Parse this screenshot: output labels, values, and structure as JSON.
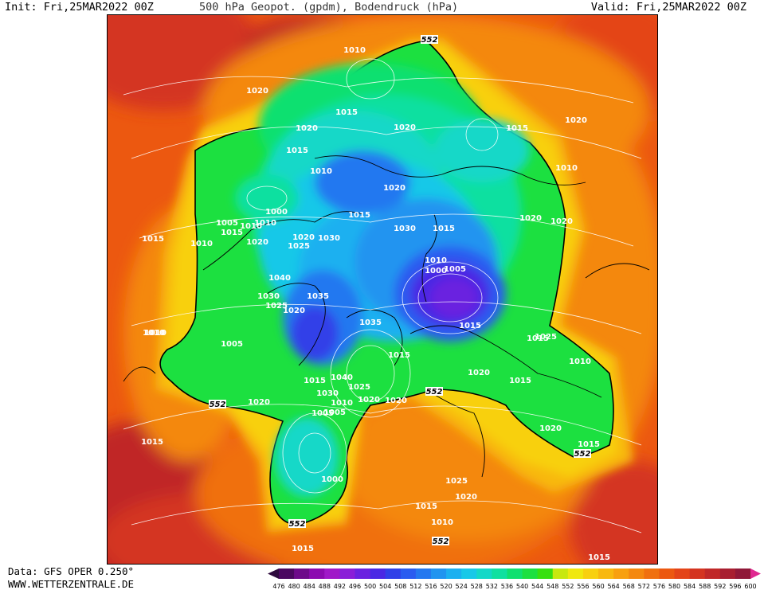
{
  "header": {
    "init": "Init: Fri,25MAR2022 00Z",
    "title": "500 hPa Geopot. (gpdm), Bodendruck (hPa)",
    "valid": "Valid: Fri,25MAR2022 00Z"
  },
  "footer": {
    "data_source": "Data: GFS OPER 0.250°",
    "website": "WWW.WETTERZENTRALE.DE"
  },
  "legend": {
    "ticks": [
      "476",
      "480",
      "484",
      "488",
      "492",
      "496",
      "500",
      "504",
      "508",
      "512",
      "516",
      "520",
      "524",
      "528",
      "532",
      "536",
      "540",
      "544",
      "548",
      "552",
      "556",
      "560",
      "564",
      "568",
      "572",
      "576",
      "580",
      "584",
      "588",
      "592",
      "596",
      "600"
    ],
    "colors": [
      "#2d0a3d",
      "#4a0860",
      "#6d0a8a",
      "#8c0ab0",
      "#a018c8",
      "#8a1ed8",
      "#6a22e0",
      "#4a28e4",
      "#3040e8",
      "#2a5cf0",
      "#2478f0",
      "#2094f0",
      "#1cb0f0",
      "#18c8e8",
      "#14d8c8",
      "#10e0a0",
      "#10e070",
      "#1ce040",
      "#38e010",
      "#c8e810",
      "#f0e810",
      "#f8d010",
      "#f8b810",
      "#f8a010",
      "#f48810",
      "#f07010",
      "#ec5810",
      "#e44418",
      "#d43420",
      "#c02828",
      "#a81e30",
      "#901838",
      "#e02890"
    ]
  },
  "map": {
    "pressure_labels": [
      {
        "text": "1010"
      },
      {
        "text": "1020"
      },
      {
        "text": "1015"
      },
      {
        "text": "1020"
      },
      {
        "text": "1015"
      },
      {
        "text": "1010"
      },
      {
        "text": "1020"
      },
      {
        "text": "1015"
      },
      {
        "text": "1010"
      },
      {
        "text": "1005"
      },
      {
        "text": "1010"
      },
      {
        "text": "1015"
      },
      {
        "text": "1010"
      },
      {
        "text": "1020"
      },
      {
        "text": "1000"
      },
      {
        "text": "1010"
      },
      {
        "text": "1015"
      },
      {
        "text": "1020"
      },
      {
        "text": "1005"
      },
      {
        "text": "1010"
      },
      {
        "text": "1020"
      },
      {
        "text": "1015"
      },
      {
        "text": "1020"
      },
      {
        "text": "1015"
      },
      {
        "text": "1010"
      },
      {
        "text": "1020"
      },
      {
        "text": "1025"
      },
      {
        "text": "1030"
      },
      {
        "text": "1040"
      },
      {
        "text": "1030"
      },
      {
        "text": "1035"
      },
      {
        "text": "1025"
      },
      {
        "text": "1020"
      },
      {
        "text": "1035"
      },
      {
        "text": "1010"
      },
      {
        "text": "1005"
      },
      {
        "text": "1000"
      },
      {
        "text": "1015"
      },
      {
        "text": "1015"
      },
      {
        "text": "1015"
      },
      {
        "text": "1010"
      },
      {
        "text": "1015"
      },
      {
        "text": "1005"
      },
      {
        "text": "1040"
      },
      {
        "text": "1025"
      },
      {
        "text": "1030"
      },
      {
        "text": "1010"
      },
      {
        "text": "1020"
      },
      {
        "text": "1020"
      },
      {
        "text": "1020"
      },
      {
        "text": "1005"
      },
      {
        "text": "1020"
      },
      {
        "text": "1015"
      },
      {
        "text": "1000"
      },
      {
        "text": "1030"
      },
      {
        "text": "1025"
      },
      {
        "text": "1020"
      },
      {
        "text": "1015"
      },
      {
        "text": "1010"
      },
      {
        "text": "1025"
      },
      {
        "text": "1015"
      },
      {
        "text": "1020"
      },
      {
        "text": "1020"
      },
      {
        "text": "1015"
      },
      {
        "text": "1015"
      },
      {
        "text": "1015"
      }
    ],
    "contour_552_labels": [
      "552",
      "552",
      "552",
      "552",
      "552",
      "552"
    ]
  }
}
